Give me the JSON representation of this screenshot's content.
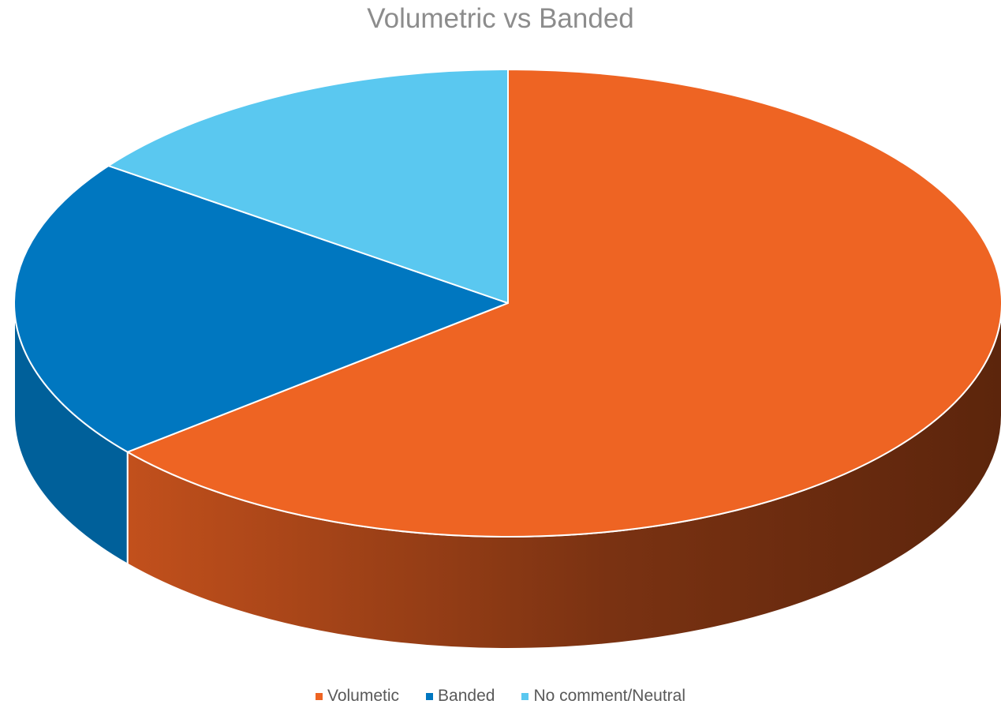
{
  "chart_data": {
    "type": "pie",
    "title": "Volumetric vs Banded",
    "categories": [
      "Volumetic",
      "Banded",
      "No comment/Neutral"
    ],
    "values": [
      64,
      21,
      15
    ],
    "colors": [
      "#ee6423",
      "#0077c0",
      "#5ac8f0"
    ],
    "side_colors": [
      "#c2501c",
      "#00609a",
      "#3aa7cf"
    ],
    "legend_position": "bottom",
    "view": "3d-tilted"
  }
}
